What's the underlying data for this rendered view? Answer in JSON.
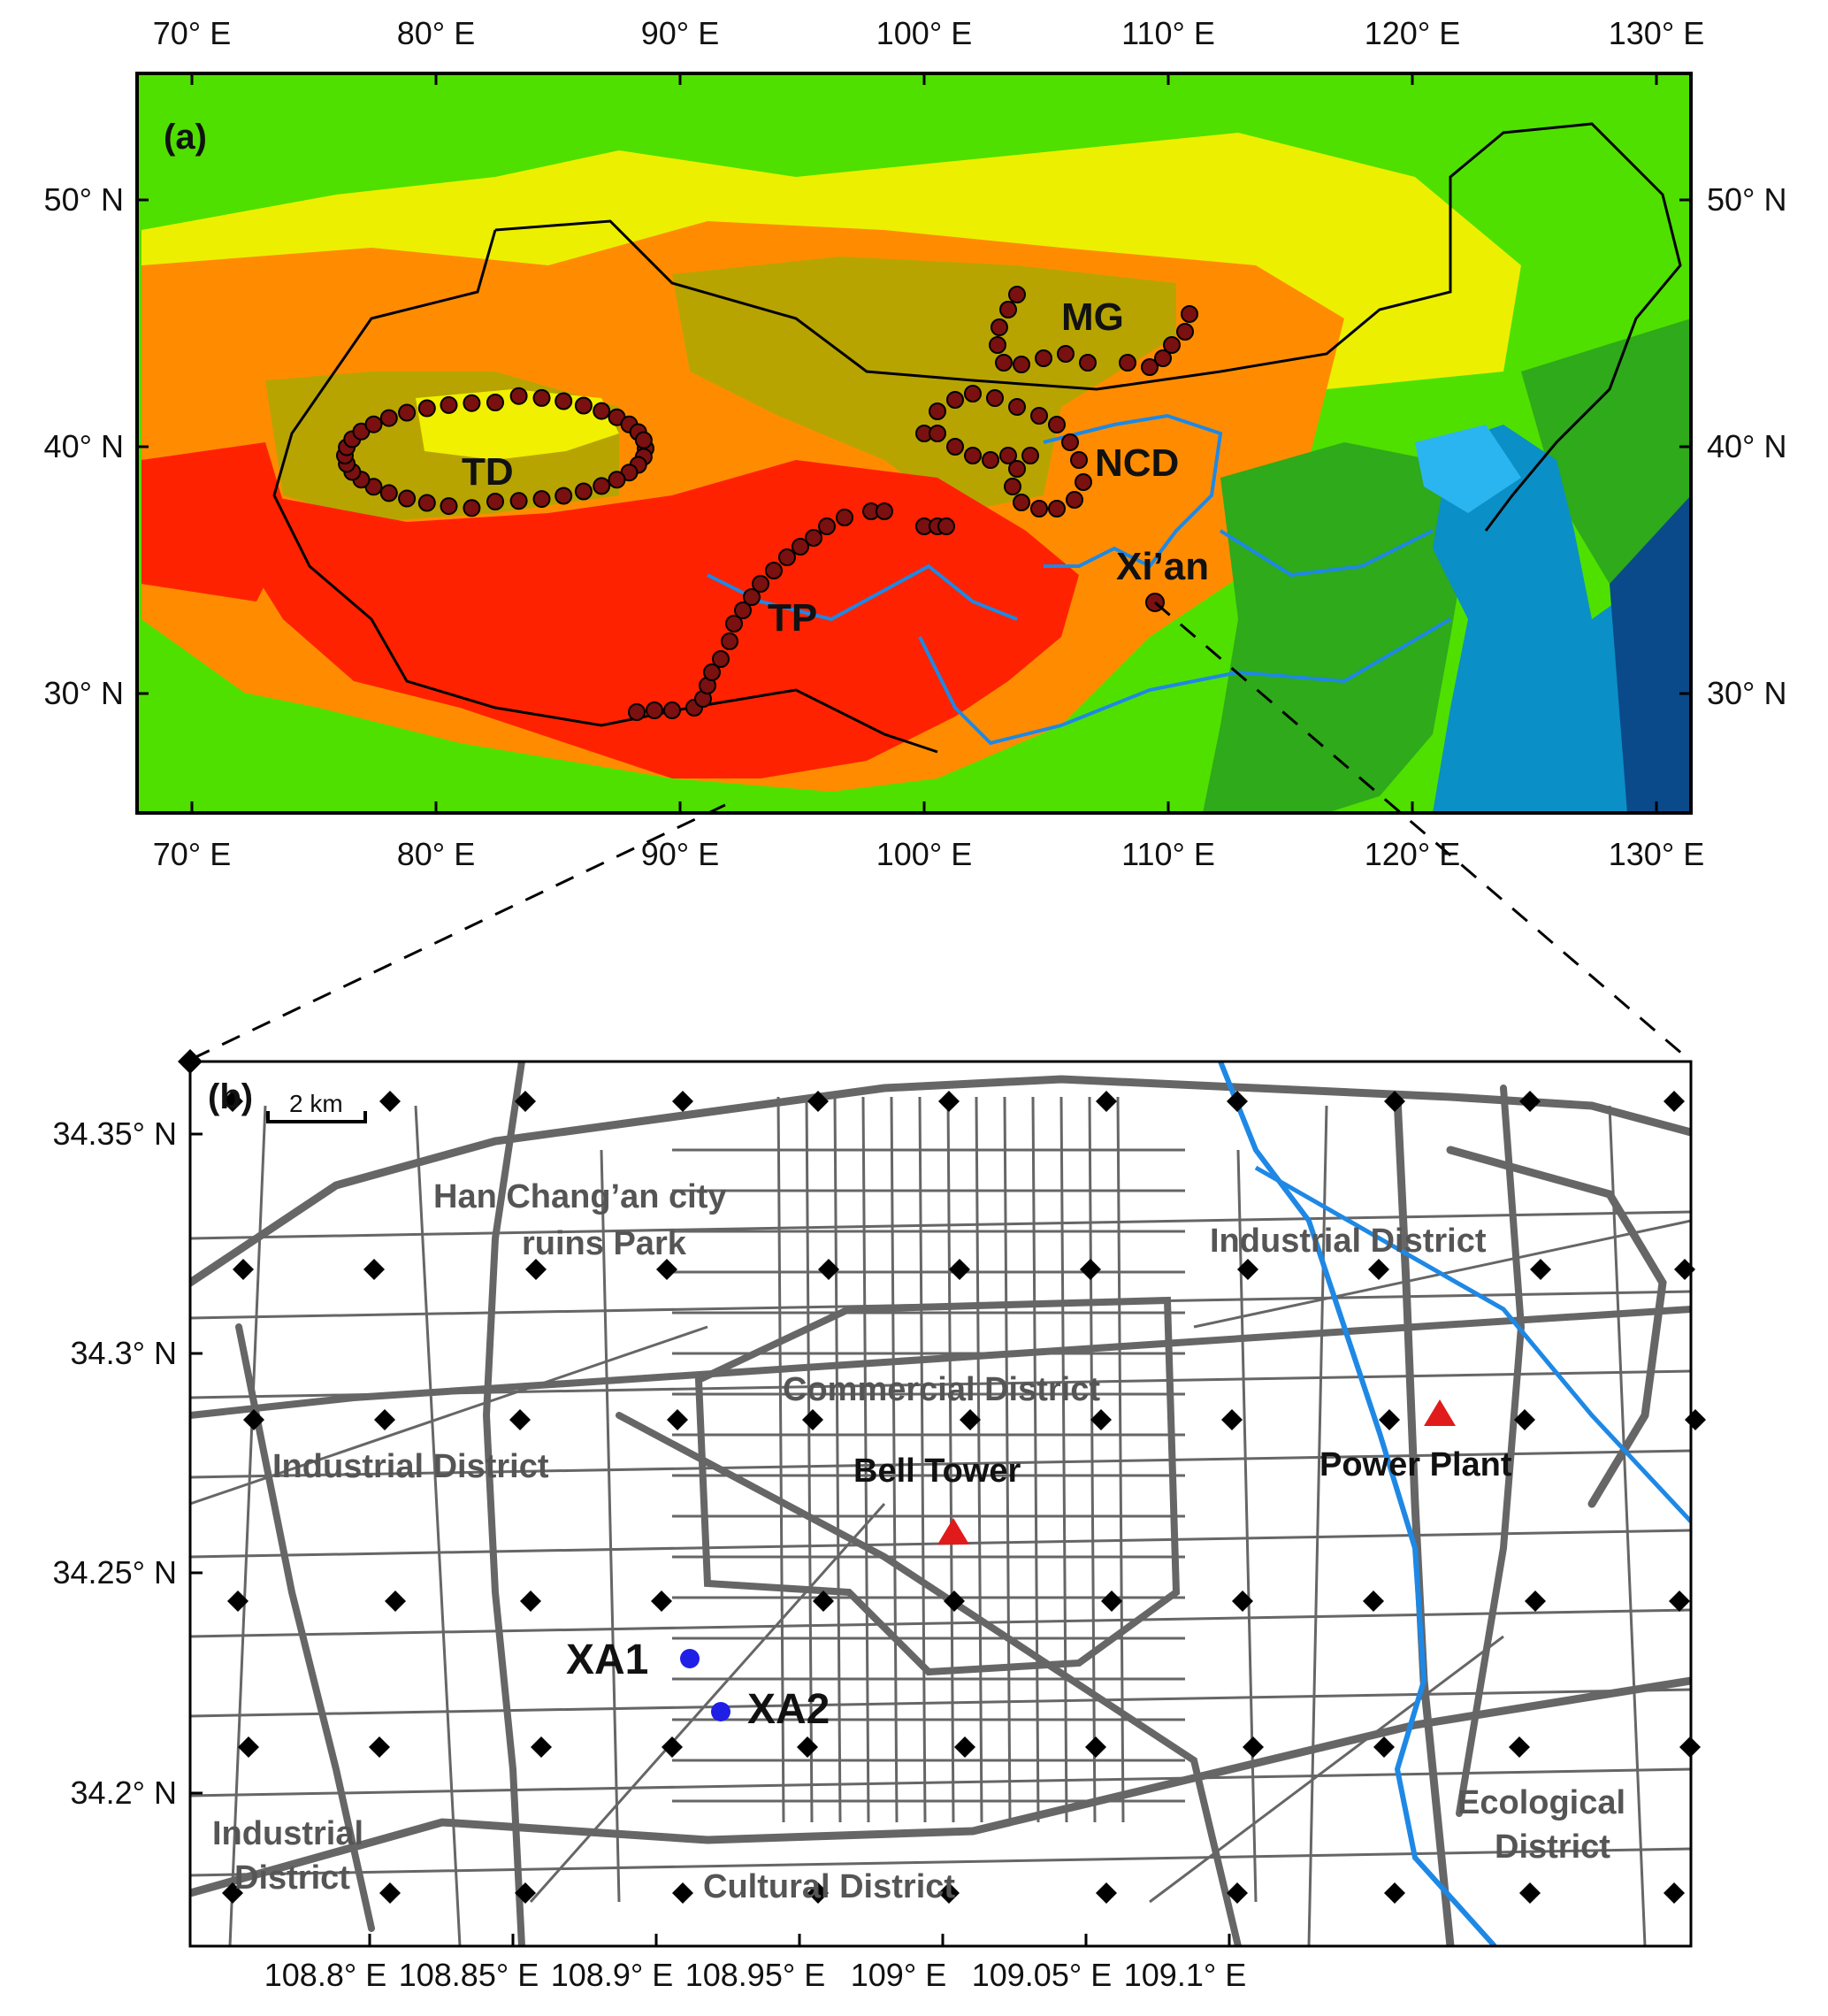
{
  "panel_a": {
    "label": "(a)",
    "lon_ticks": [
      "70° E",
      "80° E",
      "90° E",
      "100° E",
      "110° E",
      "120° E",
      "130° E"
    ],
    "lat_ticks": [
      "50° N",
      "40° N",
      "30° N"
    ],
    "regions": [
      "MG",
      "TD",
      "NCD",
      "TP",
      "Xi’an"
    ]
  },
  "panel_b": {
    "label": "(b)",
    "scale": "2 km",
    "lon_ticks": [
      "108.8° E",
      "108.85° E",
      "108.9° E",
      "108.95° E",
      "109° E",
      "109.05° E",
      "109.1° E"
    ],
    "lat_ticks": [
      "34.35° N",
      "34.3° N",
      "34.25° N",
      "34.2° N"
    ],
    "districts": {
      "han_park_1": "Han Chang’an city",
      "han_park_2": "ruins Park",
      "industrial_ne": "Industrial District",
      "commercial": "Commercial District",
      "industrial_w": "Industrial District",
      "industrial_sw_1": "Industrial",
      "industrial_sw_2": "District",
      "cultural": "Cultural District",
      "ecological_1": "Ecological",
      "ecological_2": "District"
    },
    "landmarks": {
      "bell_tower": "Bell Tower",
      "power_plant": "Power Plant"
    },
    "sites": [
      "XA1",
      "XA2"
    ]
  },
  "colors": {
    "route_dot": "#7a1010",
    "site_dot": "#1f1fe6",
    "landmark": "#e11b1b",
    "river": "#1e88e5",
    "road": "#666666",
    "high_plateau": "#ff2a00",
    "lowland": "#44dd00",
    "sea": "#0a8fc7"
  }
}
